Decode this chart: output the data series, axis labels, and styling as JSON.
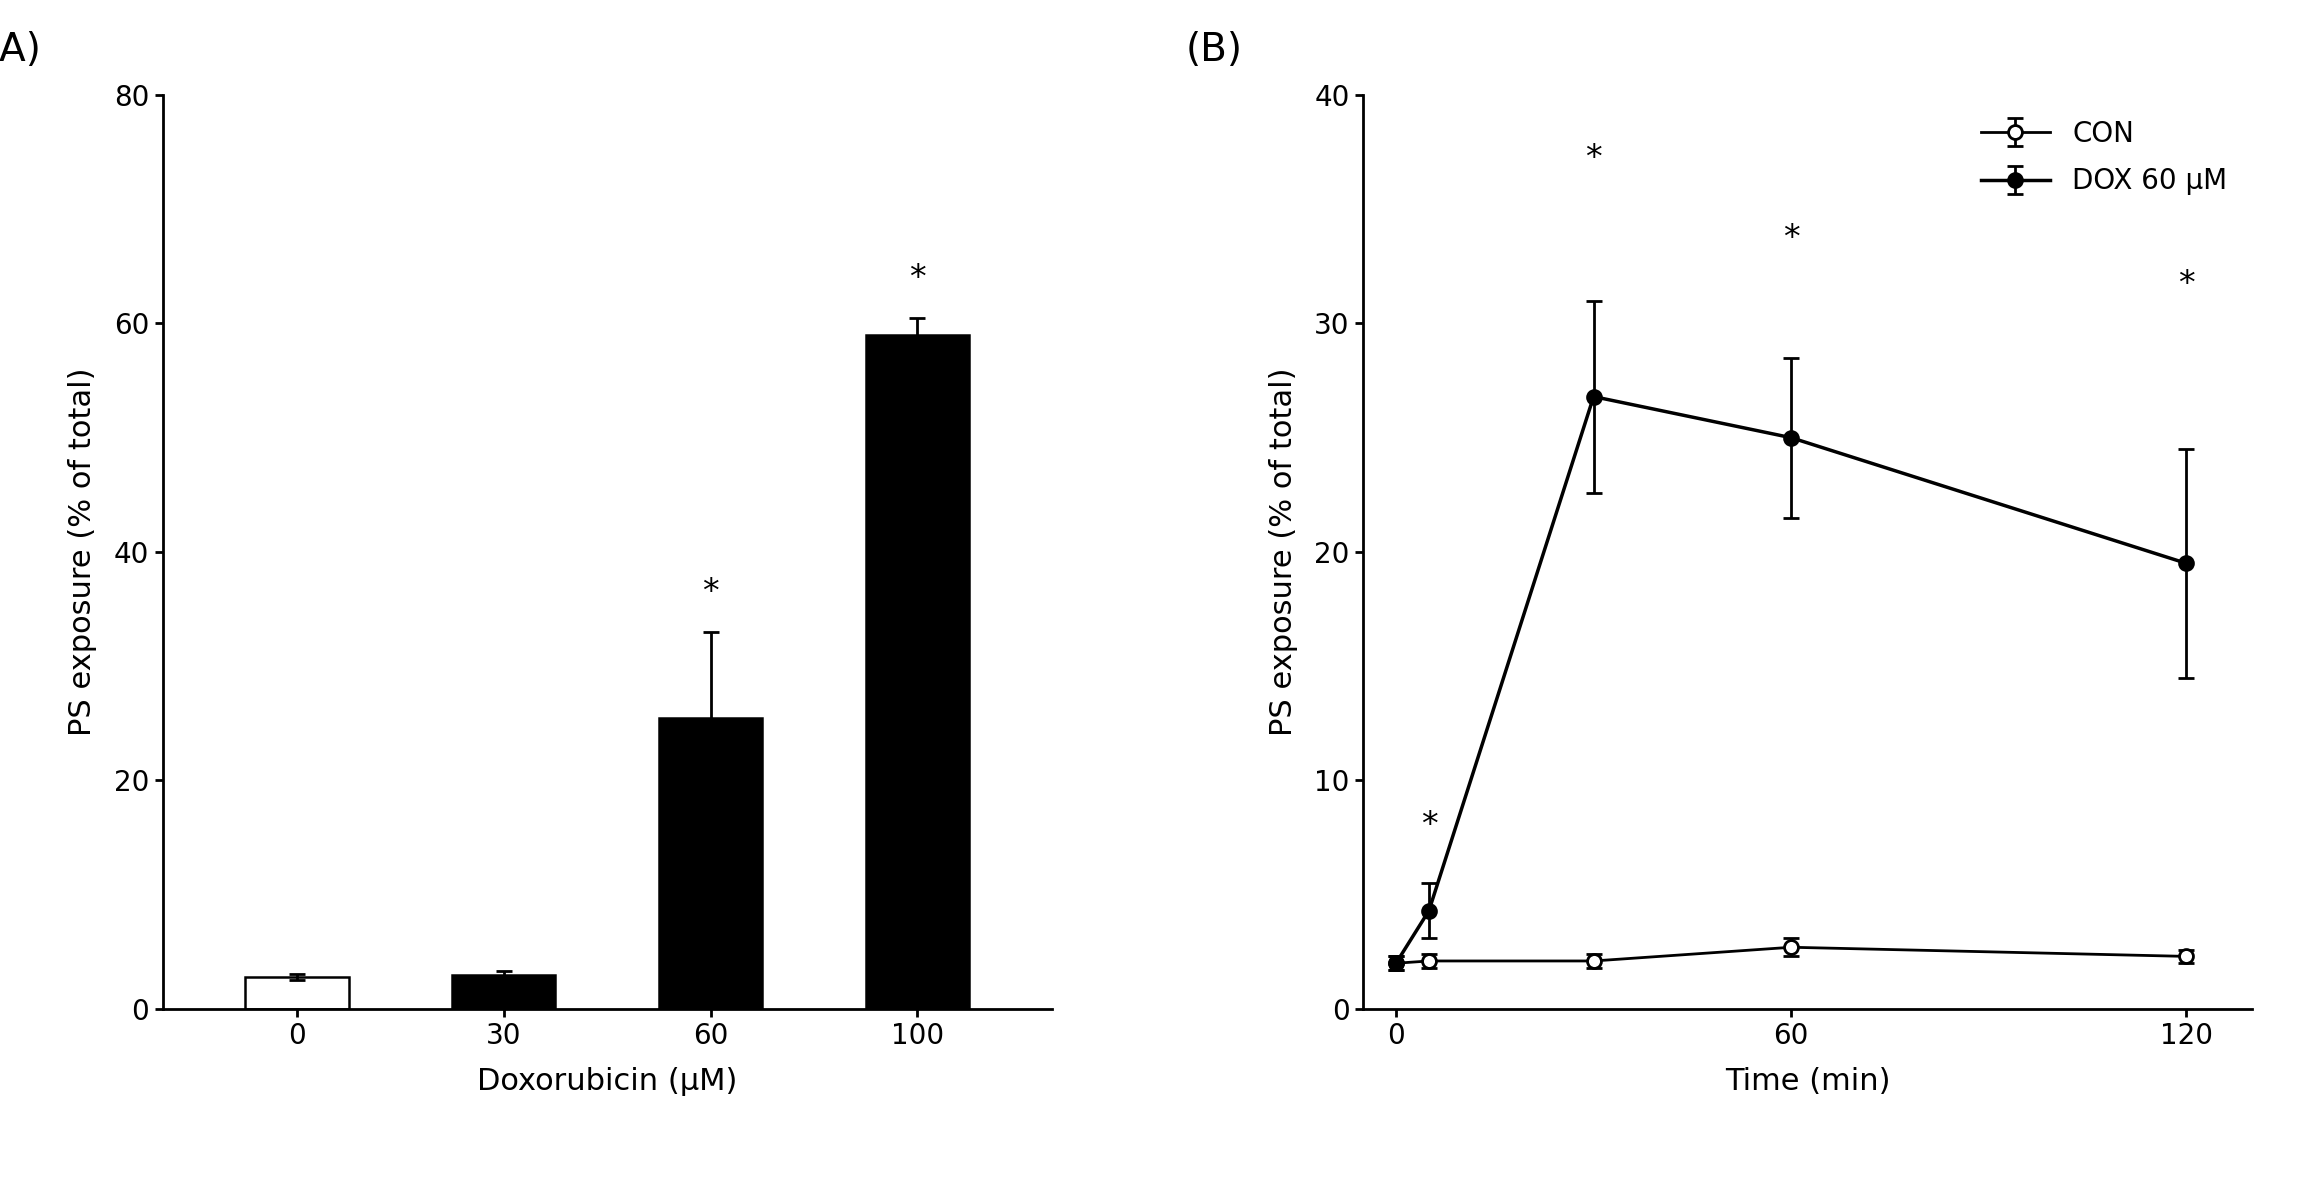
{
  "panel_A": {
    "categories": [
      "0",
      "30",
      "60",
      "100"
    ],
    "values": [
      2.8,
      3.0,
      25.5,
      59.0
    ],
    "errors": [
      0.3,
      0.3,
      7.5,
      1.5
    ],
    "bar_colors": [
      "white",
      "black",
      "black",
      "black"
    ],
    "bar_edgecolors": [
      "black",
      "black",
      "black",
      "black"
    ],
    "significance": [
      false,
      false,
      true,
      true
    ],
    "xlabel": "Doxorubicin (μM)",
    "ylabel": "PS exposure (% of total)",
    "ylim": [
      0,
      80
    ],
    "yticks": [
      0,
      20,
      40,
      60,
      80
    ],
    "panel_label": "(A)"
  },
  "panel_B": {
    "time_points": [
      0,
      5,
      30,
      60,
      120
    ],
    "con_values": [
      2.0,
      2.1,
      2.1,
      2.7,
      2.3
    ],
    "con_errors": [
      0.3,
      0.3,
      0.3,
      0.4,
      0.3
    ],
    "dox_values": [
      2.0,
      4.3,
      26.8,
      25.0,
      19.5
    ],
    "dox_errors": [
      0.3,
      1.2,
      4.2,
      3.5,
      5.0
    ],
    "dox_significance": [
      false,
      true,
      true,
      true,
      true
    ],
    "xlabel": "Time (min)",
    "ylabel": "PS exposure (% of total)",
    "ylim": [
      0,
      40
    ],
    "yticks": [
      0,
      10,
      20,
      30,
      40
    ],
    "xlim": [
      -5,
      130
    ],
    "xticks": [
      0,
      60,
      120
    ],
    "xticklabels": [
      "0",
      "60",
      "120"
    ],
    "legend_labels": [
      "CON",
      "DOX 60 μM"
    ],
    "panel_label": "(B)"
  },
  "background_color": "white",
  "label_fontsize": 22,
  "tick_fontsize": 20,
  "panel_label_fontsize": 28,
  "star_fontsize": 24,
  "legend_fontsize": 20
}
